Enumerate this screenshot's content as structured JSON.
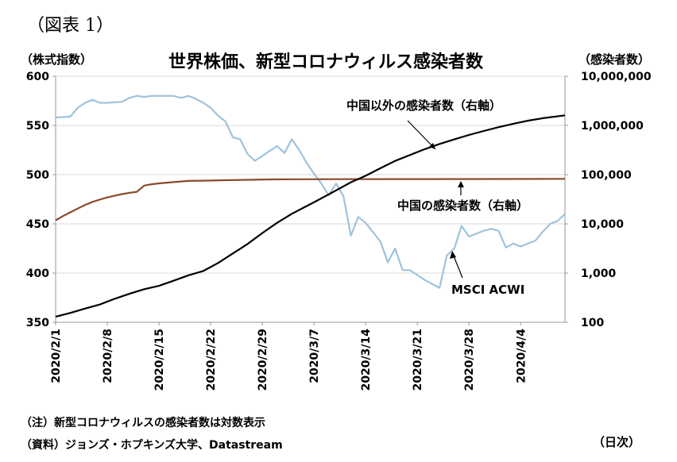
{
  "figure_label": "（図表 1）",
  "note": "（注）新型コロナウィルスの感染者数は対数表示",
  "source": "（資料）ジョンズ・ホプキンズ大学、Datastream",
  "chart_data": {
    "type": "line",
    "title": "世界株価、新型コロナウィルス感染者数",
    "ylabel_left": "（株式指数）",
    "ylabel_right": "（感染者数）",
    "xlabel": "（日次）",
    "ylim_left": [
      350,
      600
    ],
    "ylim_right": [
      100,
      10000000
    ],
    "right_axis_scale": "log",
    "x_range": [
      "2020-02-01",
      "2020-04-10"
    ],
    "grid": "horizontal",
    "yticks_left": [
      "600",
      "550",
      "500",
      "450",
      "400",
      "350"
    ],
    "yticks_right": [
      "10,000,000",
      "1,000,000",
      "100,000",
      "10,000",
      "1,000",
      "100"
    ],
    "xticks": [
      "2020/2/1",
      "2020/2/8",
      "2020/2/15",
      "2020/2/22",
      "2020/2/29",
      "2020/3/7",
      "2020/3/14",
      "2020/3/21",
      "2020/3/28",
      "2020/4/4"
    ],
    "xtick_dates": [
      "2020-02-01",
      "2020-02-08",
      "2020-02-15",
      "2020-02-22",
      "2020-02-29",
      "2020-03-07",
      "2020-03-14",
      "2020-03-21",
      "2020-03-28",
      "2020-04-04"
    ],
    "annotations": [
      "中国以外の感染者数（右軸）",
      "中国の感染者数（右軸）",
      "MSCI ACWI"
    ],
    "colors": {
      "acwi": "#9ec3dd",
      "china": "#8b4a2b",
      "ex_china": "#000000",
      "grid": "#d9d9d9"
    },
    "series": [
      {
        "key": "acwi",
        "axis": "left",
        "x": [
          "2020-02-01",
          "2020-02-03",
          "2020-02-04",
          "2020-02-05",
          "2020-02-06",
          "2020-02-07",
          "2020-02-08",
          "2020-02-10",
          "2020-02-11",
          "2020-02-12",
          "2020-02-13",
          "2020-02-14",
          "2020-02-15",
          "2020-02-16",
          "2020-02-17",
          "2020-02-18",
          "2020-02-19",
          "2020-02-20",
          "2020-02-21",
          "2020-02-22",
          "2020-02-23",
          "2020-02-24",
          "2020-02-25",
          "2020-02-26",
          "2020-02-27",
          "2020-02-28",
          "2020-02-29",
          "2020-03-01",
          "2020-03-02",
          "2020-03-03",
          "2020-03-04",
          "2020-03-05",
          "2020-03-06",
          "2020-03-07",
          "2020-03-08",
          "2020-03-09",
          "2020-03-10",
          "2020-03-11",
          "2020-03-12",
          "2020-03-13",
          "2020-03-14",
          "2020-03-16",
          "2020-03-17",
          "2020-03-18",
          "2020-03-19",
          "2020-03-20",
          "2020-03-21",
          "2020-03-22",
          "2020-03-23",
          "2020-03-24",
          "2020-03-25",
          "2020-03-26",
          "2020-03-27",
          "2020-03-28",
          "2020-03-29",
          "2020-03-30",
          "2020-03-31",
          "2020-04-01",
          "2020-04-02",
          "2020-04-03",
          "2020-04-04",
          "2020-04-06",
          "2020-04-07",
          "2020-04-08",
          "2020-04-09",
          "2020-04-10"
        ],
        "values": [
          558,
          559,
          568,
          573,
          576,
          573,
          573,
          574,
          578,
          580,
          579,
          580,
          580,
          580,
          580,
          578,
          580,
          577,
          573,
          568,
          560,
          554,
          538,
          536,
          521,
          514,
          519,
          524,
          529,
          522,
          536,
          525,
          512,
          501,
          491,
          479,
          491,
          478,
          438,
          457,
          451,
          432,
          411,
          425,
          403,
          403,
          398,
          393,
          389,
          385,
          418,
          425,
          448,
          437,
          440,
          443,
          445,
          443,
          426,
          430,
          427,
          433,
          442,
          450,
          453,
          460
        ]
      },
      {
        "key": "china",
        "axis": "right",
        "x": [
          "2020-02-01",
          "2020-02-02",
          "2020-02-03",
          "2020-02-04",
          "2020-02-05",
          "2020-02-06",
          "2020-02-07",
          "2020-02-08",
          "2020-02-09",
          "2020-02-10",
          "2020-02-11",
          "2020-02-12",
          "2020-02-13",
          "2020-02-14",
          "2020-02-15",
          "2020-02-17",
          "2020-02-19",
          "2020-02-21",
          "2020-02-24",
          "2020-02-27",
          "2020-03-01",
          "2020-03-05",
          "2020-03-10",
          "2020-03-20",
          "2020-04-01",
          "2020-04-10"
        ],
        "values": [
          11800,
          14400,
          17200,
          20500,
          24300,
          28000,
          31200,
          34500,
          37200,
          40200,
          42700,
          44700,
          59900,
          63900,
          66500,
          70500,
          74500,
          75500,
          77200,
          78500,
          79900,
          80500,
          80800,
          81200,
          81600,
          82000
        ]
      },
      {
        "key": "ex_china",
        "axis": "right",
        "x": [
          "2020-02-01",
          "2020-02-03",
          "2020-02-05",
          "2020-02-07",
          "2020-02-09",
          "2020-02-11",
          "2020-02-13",
          "2020-02-15",
          "2020-02-17",
          "2020-02-19",
          "2020-02-21",
          "2020-02-23",
          "2020-02-25",
          "2020-02-27",
          "2020-02-29",
          "2020-03-02",
          "2020-03-04",
          "2020-03-06",
          "2020-03-08",
          "2020-03-10",
          "2020-03-12",
          "2020-03-14",
          "2020-03-16",
          "2020-03-18",
          "2020-03-20",
          "2020-03-22",
          "2020-03-24",
          "2020-03-26",
          "2020-03-28",
          "2020-03-30",
          "2020-04-01",
          "2020-04-03",
          "2020-04-05",
          "2020-04-07",
          "2020-04-10"
        ],
        "values": [
          130,
          155,
          190,
          230,
          300,
          380,
          470,
          550,
          700,
          900,
          1100,
          1600,
          2500,
          3900,
          6500,
          10500,
          16000,
          23000,
          33000,
          48000,
          70000,
          95000,
          135000,
          190000,
          250000,
          330000,
          420000,
          520000,
          640000,
          770000,
          920000,
          1080000,
          1250000,
          1400000,
          1600000
        ]
      }
    ]
  }
}
